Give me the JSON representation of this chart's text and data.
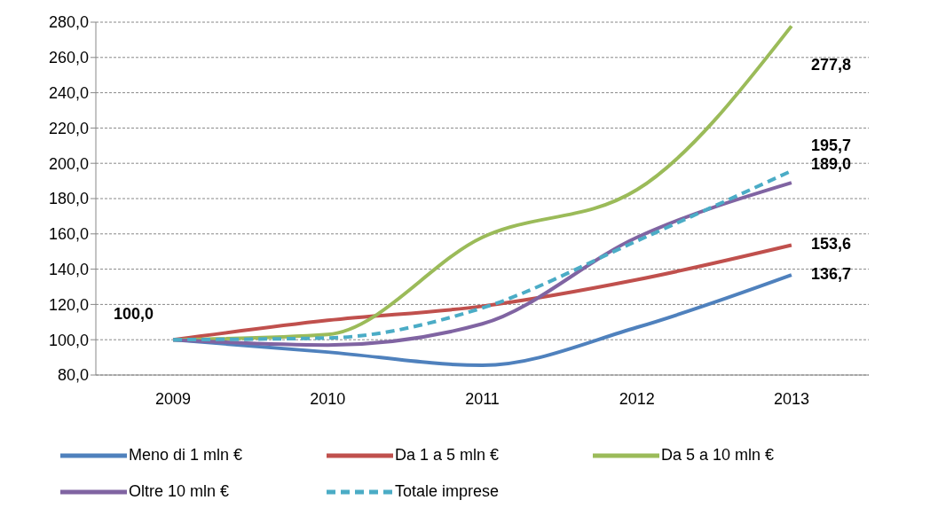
{
  "chart_data": {
    "type": "line",
    "categories": [
      "2009",
      "2010",
      "2011",
      "2012",
      "2013"
    ],
    "series": [
      {
        "name": "Meno di 1 mln €",
        "color": "#4f81bd",
        "values": [
          100,
          93,
          85.5,
          107,
          136.7
        ],
        "value_labels": [
          null,
          null,
          null,
          null,
          "136,7"
        ]
      },
      {
        "name": "Da 1 a 5 mln €",
        "color": "#c0504d",
        "values": [
          100,
          111,
          119,
          134,
          153.6
        ],
        "value_labels": [
          null,
          null,
          null,
          null,
          "153,6"
        ]
      },
      {
        "name": "Da 5 a 10 mln €",
        "color": "#9bbb59",
        "values": [
          100,
          103,
          158,
          185,
          277.8
        ],
        "value_labels": [
          null,
          null,
          null,
          null,
          "277,8"
        ]
      },
      {
        "name": "Oltre 10 mln €",
        "color": "#8064a2",
        "values": [
          100,
          97,
          109,
          158,
          189.0
        ],
        "value_labels": [
          null,
          null,
          null,
          null,
          "189,0"
        ]
      },
      {
        "name": "Totale imprese",
        "color": "#4bacc6",
        "values": [
          100,
          101,
          118,
          156,
          195.7
        ],
        "value_labels": [
          "100,0",
          null,
          null,
          null,
          "195,7"
        ],
        "line_style": "dashed"
      }
    ],
    "ylim": [
      80,
      280
    ],
    "yticks": [
      {
        "value": 80,
        "label": "80,0"
      },
      {
        "value": 100,
        "label": "100,0"
      },
      {
        "value": 120,
        "label": "120,0"
      },
      {
        "value": 140,
        "label": "140,0"
      },
      {
        "value": 160,
        "label": "160,0"
      },
      {
        "value": 180,
        "label": "180,0"
      },
      {
        "value": 200,
        "label": "200,0"
      },
      {
        "value": 220,
        "label": "220,0"
      },
      {
        "value": 240,
        "label": "240,0"
      },
      {
        "value": 260,
        "label": "260,0"
      },
      {
        "value": 280,
        "label": "280,0"
      }
    ],
    "grid": "y",
    "legend": "bottom",
    "marker": "none",
    "line_style": "solid"
  }
}
